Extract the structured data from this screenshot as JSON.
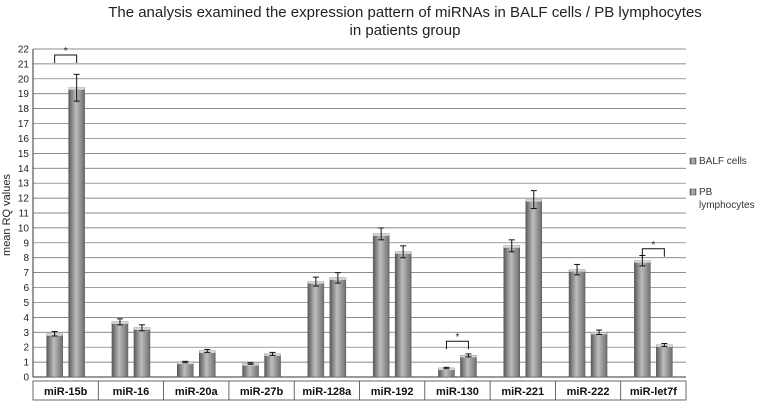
{
  "chart_data": {
    "type": "bar",
    "title_lines": [
      "The analysis examined the expression pattern of miRNAs in BALF cells / PB lymphocytes",
      "in patients group"
    ],
    "ylabel": "mean RQ values",
    "xlabel": "",
    "ylim": [
      0,
      22
    ],
    "yticks": [
      "0",
      "1",
      "2",
      "3",
      "4",
      "5",
      "6",
      "7",
      "8",
      "9",
      "10",
      "11",
      "12",
      "13",
      "14",
      "15",
      "16",
      "17",
      "18",
      "19",
      "20",
      "21",
      "22"
    ],
    "grid": "horizontal",
    "legend_position": "right",
    "categories": [
      "miR-15b",
      "miR-16",
      "miR-20a",
      "miR-27b",
      "miR-128a",
      "miR-192",
      "miR-130",
      "miR-221",
      "miR-222",
      "miR-let7f"
    ],
    "series": [
      {
        "name": "BALF cells",
        "values": [
          2.9,
          3.7,
          1.0,
          0.9,
          6.4,
          9.6,
          0.6,
          8.8,
          7.2,
          7.8
        ],
        "errors": [
          0.15,
          0.2,
          0.05,
          0.05,
          0.3,
          0.4,
          0.05,
          0.4,
          0.35,
          0.35
        ]
      },
      {
        "name": "PB lymphocytes",
        "values": [
          19.4,
          3.3,
          1.75,
          1.55,
          6.65,
          8.4,
          1.45,
          11.9,
          3.0,
          2.15
        ],
        "errors": [
          0.9,
          0.2,
          0.1,
          0.1,
          0.35,
          0.4,
          0.1,
          0.6,
          0.15,
          0.1
        ]
      }
    ],
    "significance_marks": [
      {
        "category": "miR-15b",
        "label": "*",
        "bracket_value": 21.6
      },
      {
        "category": "miR-130",
        "label": "*",
        "bracket_value": 2.4
      },
      {
        "category": "miR-let7f",
        "label": "*",
        "bracket_value": 8.6
      }
    ],
    "colors": {
      "bar_light": "#b9b9b9",
      "bar_mid": "#8c8c8c",
      "bar_dark": "#5a5a5a",
      "grid": "#666666",
      "axis": "#333333"
    }
  }
}
